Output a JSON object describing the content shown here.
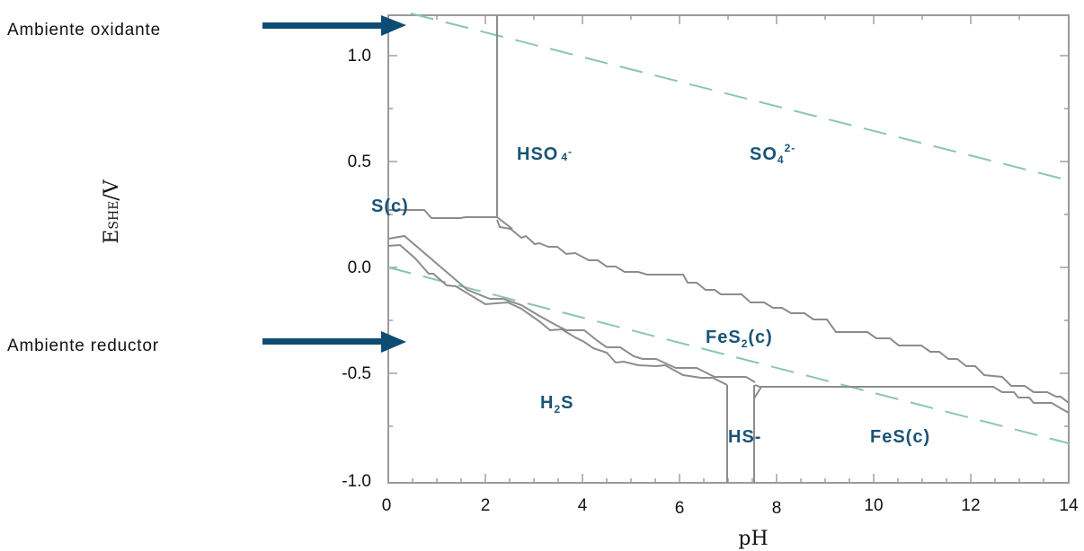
{
  "labels": {
    "oxidizing": "Ambiente oxidante",
    "reducing": "Ambiente reductor",
    "x_axis": "pH",
    "y_axis_main": "E",
    "y_axis_sub": "SHE",
    "y_axis_unit": "/V"
  },
  "x_ticks": [
    "0",
    "2",
    "4",
    "6",
    "8",
    "10",
    "12",
    "14"
  ],
  "y_ticks": [
    "1.0",
    "0.5",
    "0.0",
    "-0.5",
    "-1.0"
  ],
  "regions": {
    "hso4": {
      "base": "HSO",
      "sub": "4",
      "sup": "-"
    },
    "so4": {
      "base": "SO",
      "sub": "4",
      "sup": "2-"
    },
    "s": "S(c)",
    "fes2": {
      "base": "FeS",
      "sub": "2",
      "rest": "(c)"
    },
    "h2s": {
      "base": "H",
      "sub": "2",
      "rest": "S"
    },
    "hs": "HS-",
    "fes": "FeS(c)"
  },
  "colors": {
    "arrow": "#0d4d73",
    "region_text": "#1a5477",
    "boundary": "#8c8c8c",
    "water_limit": "#8cc5b0",
    "frame": "#9a9a9a"
  },
  "chart_data": {
    "type": "diagram",
    "xlabel": "pH",
    "ylabel": "E SHE /V",
    "xlim": [
      0,
      14
    ],
    "ylim": [
      -1.0,
      1.2
    ],
    "water_lines": [
      {
        "x": [
          0,
          14
        ],
        "y": [
          1.23,
          0.4
        ]
      },
      {
        "x": [
          0,
          14
        ],
        "y": [
          0.0,
          -0.83
        ]
      }
    ],
    "vertical_boundaries": [
      {
        "x": 2.25,
        "y": [
          0.24,
          1.2
        ]
      },
      {
        "x": 7.0,
        "y": [
          -0.52,
          -1.0
        ]
      },
      {
        "x": 7.55,
        "y": [
          -0.55,
          -1.0
        ]
      }
    ]
  }
}
